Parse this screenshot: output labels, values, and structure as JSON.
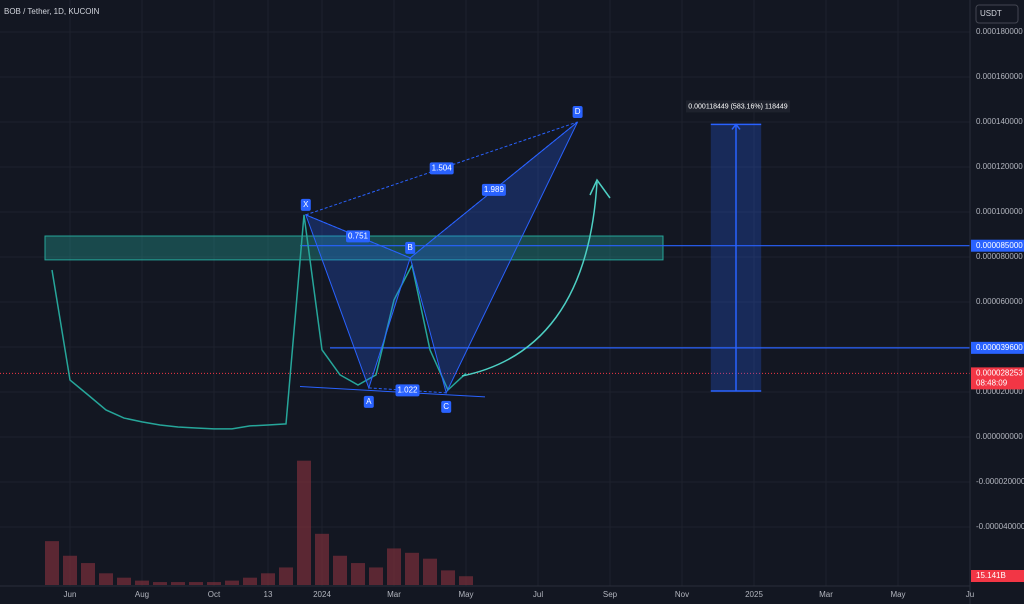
{
  "chart_data": {
    "type": "line",
    "title": "BOB / Tether, 1D, KUCOIN",
    "currency": "USDT",
    "categories": [
      null,
      "Jun",
      null,
      null,
      null,
      "Aug",
      null,
      null,
      null,
      "Oct",
      null,
      null,
      "13",
      null,
      null,
      "2024",
      null,
      null,
      null,
      "Mar",
      null,
      null,
      null,
      "May",
      null,
      null,
      null,
      "Jul",
      null,
      null,
      null,
      "Sep",
      null,
      null,
      null,
      "Nov",
      null,
      null,
      null,
      "2025",
      null,
      null,
      null,
      "Mar",
      null,
      null,
      null,
      "May",
      null,
      null,
      null,
      "Ju"
    ],
    "series": [
      {
        "color": "#26a69a",
        "values": [
          7.42e-05,
          2.53e-05,
          1.87e-05,
          1.2e-05,
          8.4e-06,
          6.7e-06,
          5.3e-06,
          4.4e-06,
          4e-06,
          3.6e-06,
          3.6e-06,
          4.9e-06,
          5.3e-06,
          5.8e-06,
          9.87e-05,
          3.87e-05,
          2.76e-05,
          2.31e-05,
          2.76e-05,
          6.09e-05,
          7.64e-05,
          3.87e-05,
          2.09e-05,
          2.83e-05,
          null,
          null,
          null,
          null,
          null,
          null,
          null,
          null,
          null,
          null,
          null,
          null,
          null,
          null,
          null,
          null,
          null,
          null,
          null,
          null,
          null,
          null,
          null,
          null,
          null,
          null,
          null,
          null
        ]
      },
      {
        "color": "#7a2f3a",
        "axis": "y2",
        "values": [
          30,
          20,
          15,
          8,
          5,
          3,
          2,
          2,
          2,
          2,
          3,
          5,
          8,
          12,
          85,
          35,
          20,
          15,
          12,
          25,
          22,
          18,
          10,
          6,
          null,
          null,
          null,
          null,
          null,
          null,
          null,
          null,
          null,
          null,
          null,
          null,
          null,
          null,
          null,
          null,
          null,
          null,
          null,
          null,
          null,
          null,
          null,
          null,
          null,
          null,
          null,
          null
        ]
      }
    ],
    "ylim": [
      -6.58e-05,
      0.0001942
    ],
    "yticks": [
      {
        "value": 0.00018,
        "label": "0.000180000"
      },
      {
        "value": 0.00016,
        "label": "0.000160000"
      },
      {
        "value": 0.00014,
        "label": "0.000140000"
      },
      {
        "value": 0.00012,
        "label": "0.000120000"
      },
      {
        "value": 0.0001,
        "label": "0.000100000"
      },
      {
        "value": 8e-05,
        "label": "0.000080000"
      },
      {
        "value": 6e-05,
        "label": "0.000060000"
      },
      {
        "value": 4e-05,
        "label": "0.000040000"
      },
      {
        "value": 2e-05,
        "label": "0.000020000"
      },
      {
        "value": 0,
        "label": "0.000000000"
      },
      {
        "value": -2e-05,
        "label": "-0.000020000"
      },
      {
        "value": -4e-05,
        "label": "-0.000040000"
      }
    ],
    "y2lim": [
      0,
      100
    ],
    "grid": true,
    "pattern_points": [
      {
        "label": "X",
        "x": 14.1,
        "y": 9.87e-05
      },
      {
        "label": "A",
        "x": 17.6,
        "y": 2.18e-05
      },
      {
        "label": "B",
        "x": 19.9,
        "y": 7.96e-05
      },
      {
        "label": "C",
        "x": 21.9,
        "y": 1.96e-05
      },
      {
        "label": "D",
        "x": 29.2,
        "y": 0.00014
      }
    ],
    "ratios": [
      "0.751",
      "1.504",
      "1.989",
      "1.022"
    ],
    "zone": [
      7.87e-05,
      8.93e-05
    ],
    "levels": [
      {
        "value": 8.5e-05,
        "label": "0.000085000"
      },
      {
        "value": 3.96e-05,
        "label": "0.000039600"
      }
    ],
    "current_price": {
      "value": 2.8253e-05,
      "label": "0.000028253",
      "countdown": "08:48:09"
    },
    "measure": {
      "from": 2.04e-05,
      "to": 0.0001389,
      "x": [
        36.6,
        39.4
      ],
      "label": "0.000118449 (583.16%) 118449"
    },
    "volume_label": "15.141B"
  }
}
